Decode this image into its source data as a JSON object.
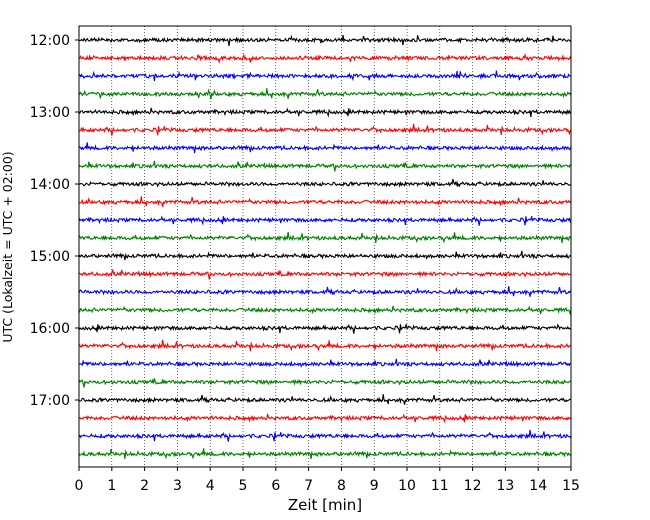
{
  "chart_data": {
    "type": "line",
    "title": "",
    "xlabel": "Zeit  [min]",
    "ylabel": "UTC (Lokalzeit = UTC + 02:00)",
    "xlim": [
      0,
      15
    ],
    "xticks": [
      "0",
      "1",
      "2",
      "3",
      "4",
      "5",
      "6",
      "7",
      "8",
      "9",
      "10",
      "11",
      "12",
      "13",
      "14",
      "15"
    ],
    "ytick_labels": [
      "12:00",
      "13:00",
      "14:00",
      "15:00",
      "16:00",
      "17:00"
    ],
    "grid": "vertical dotted lines at each minute",
    "lines_per_hour": 4,
    "minutes_per_line": 15,
    "trace_color_cycle": [
      "#000000",
      "#ff0000",
      "#0000ff",
      "#007f00"
    ],
    "rows": [
      {
        "start": "12:00",
        "color": "#000000"
      },
      {
        "start": "12:15",
        "color": "#ff0000"
      },
      {
        "start": "12:30",
        "color": "#0000ff"
      },
      {
        "start": "12:45",
        "color": "#007f00"
      },
      {
        "start": "13:00",
        "color": "#000000"
      },
      {
        "start": "13:15",
        "color": "#ff0000"
      },
      {
        "start": "13:30",
        "color": "#0000ff"
      },
      {
        "start": "13:45",
        "color": "#007f00"
      },
      {
        "start": "14:00",
        "color": "#000000"
      },
      {
        "start": "14:15",
        "color": "#ff0000"
      },
      {
        "start": "14:30",
        "color": "#0000ff"
      },
      {
        "start": "14:45",
        "color": "#007f00"
      },
      {
        "start": "15:00",
        "color": "#000000"
      },
      {
        "start": "15:15",
        "color": "#ff0000"
      },
      {
        "start": "15:30",
        "color": "#0000ff"
      },
      {
        "start": "15:45",
        "color": "#007f00"
      },
      {
        "start": "16:00",
        "color": "#000000"
      },
      {
        "start": "16:15",
        "color": "#ff0000"
      },
      {
        "start": "16:30",
        "color": "#0000ff"
      },
      {
        "start": "16:45",
        "color": "#007f00"
      },
      {
        "start": "17:00",
        "color": "#000000"
      },
      {
        "start": "17:15",
        "color": "#ff0000"
      },
      {
        "start": "17:30",
        "color": "#0000ff"
      },
      {
        "start": "17:45",
        "color": "#007f00"
      }
    ]
  }
}
